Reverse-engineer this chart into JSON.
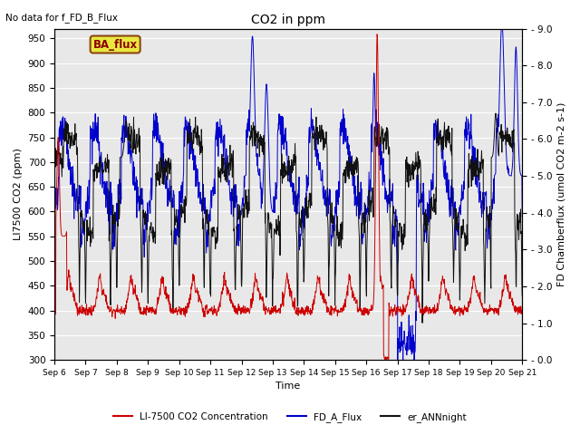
{
  "title": "CO2 in ppm",
  "xlabel": "Time",
  "ylabel_left": "LI7500 CO2 (ppm)",
  "ylabel_right": "FD Chamberflux (umol CO2 m-2 s-1)",
  "annotation_top_left": "No data for f_FD_B_Flux",
  "legend_box_label": "BA_flux",
  "ylim_left": [
    300,
    970
  ],
  "ylim_right": [
    0.0,
    9.0
  ],
  "yticks_left": [
    300,
    350,
    400,
    450,
    500,
    550,
    600,
    650,
    700,
    750,
    800,
    850,
    900,
    950
  ],
  "yticks_right": [
    0.0,
    1.0,
    2.0,
    3.0,
    4.0,
    5.0,
    6.0,
    7.0,
    8.0,
    9.0
  ],
  "xtick_labels": [
    "Sep 6",
    "Sep 7",
    "Sep 8",
    "Sep 9",
    "Sep 10",
    "Sep 11",
    "Sep 12",
    "Sep 13",
    "Sep 14",
    "Sep 15",
    "Sep 16",
    "Sep 17",
    "Sep 18",
    "Sep 19",
    "Sep 20",
    "Sep 21"
  ],
  "colors": {
    "red": "#cc0000",
    "blue": "#0000cc",
    "black": "#111111",
    "legend_box_bg": "#e8e840",
    "legend_box_border": "#8b4513",
    "bg_gray": "#e8e8e8",
    "grid_white": "#ffffff"
  },
  "legend_labels": [
    "LI-7500 CO2 Concentration",
    "FD_A_Flux",
    "er_ANNnight"
  ],
  "n_points": 1500
}
